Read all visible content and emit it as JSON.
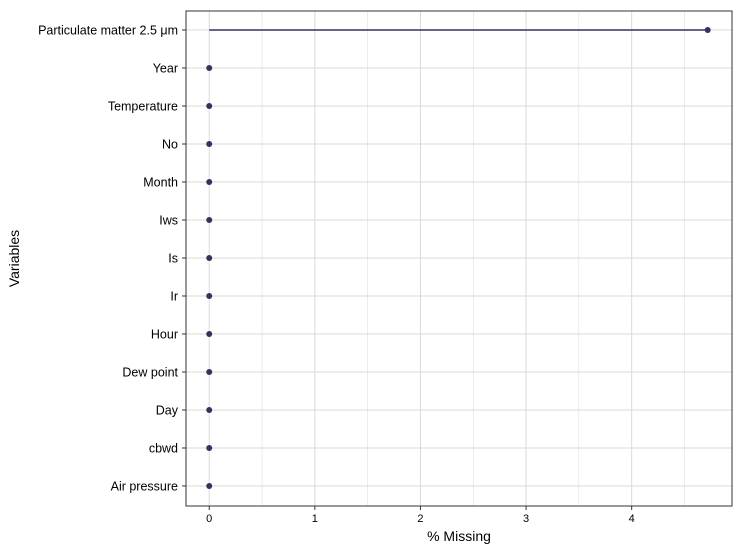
{
  "chart_data": {
    "type": "lollipop",
    "categories": [
      "Particulate matter 2.5 μm",
      "Year",
      "Temperature",
      "No",
      "Month",
      "Iws",
      "Is",
      "Ir",
      "Hour",
      "Dew point",
      "Day",
      "cbwd",
      "Air pressure"
    ],
    "values": [
      4.72,
      0,
      0,
      0,
      0,
      0,
      0,
      0,
      0,
      0,
      0,
      0,
      0
    ],
    "xlabel": "% Missing",
    "ylabel": "Variables",
    "xlim": [
      -0.22,
      4.95
    ],
    "xticks": [
      0,
      1,
      2,
      3,
      4
    ],
    "grid": true,
    "color": "#3b2f5e",
    "gridColor": "#d9d9d9",
    "axisColor": "#333333"
  }
}
